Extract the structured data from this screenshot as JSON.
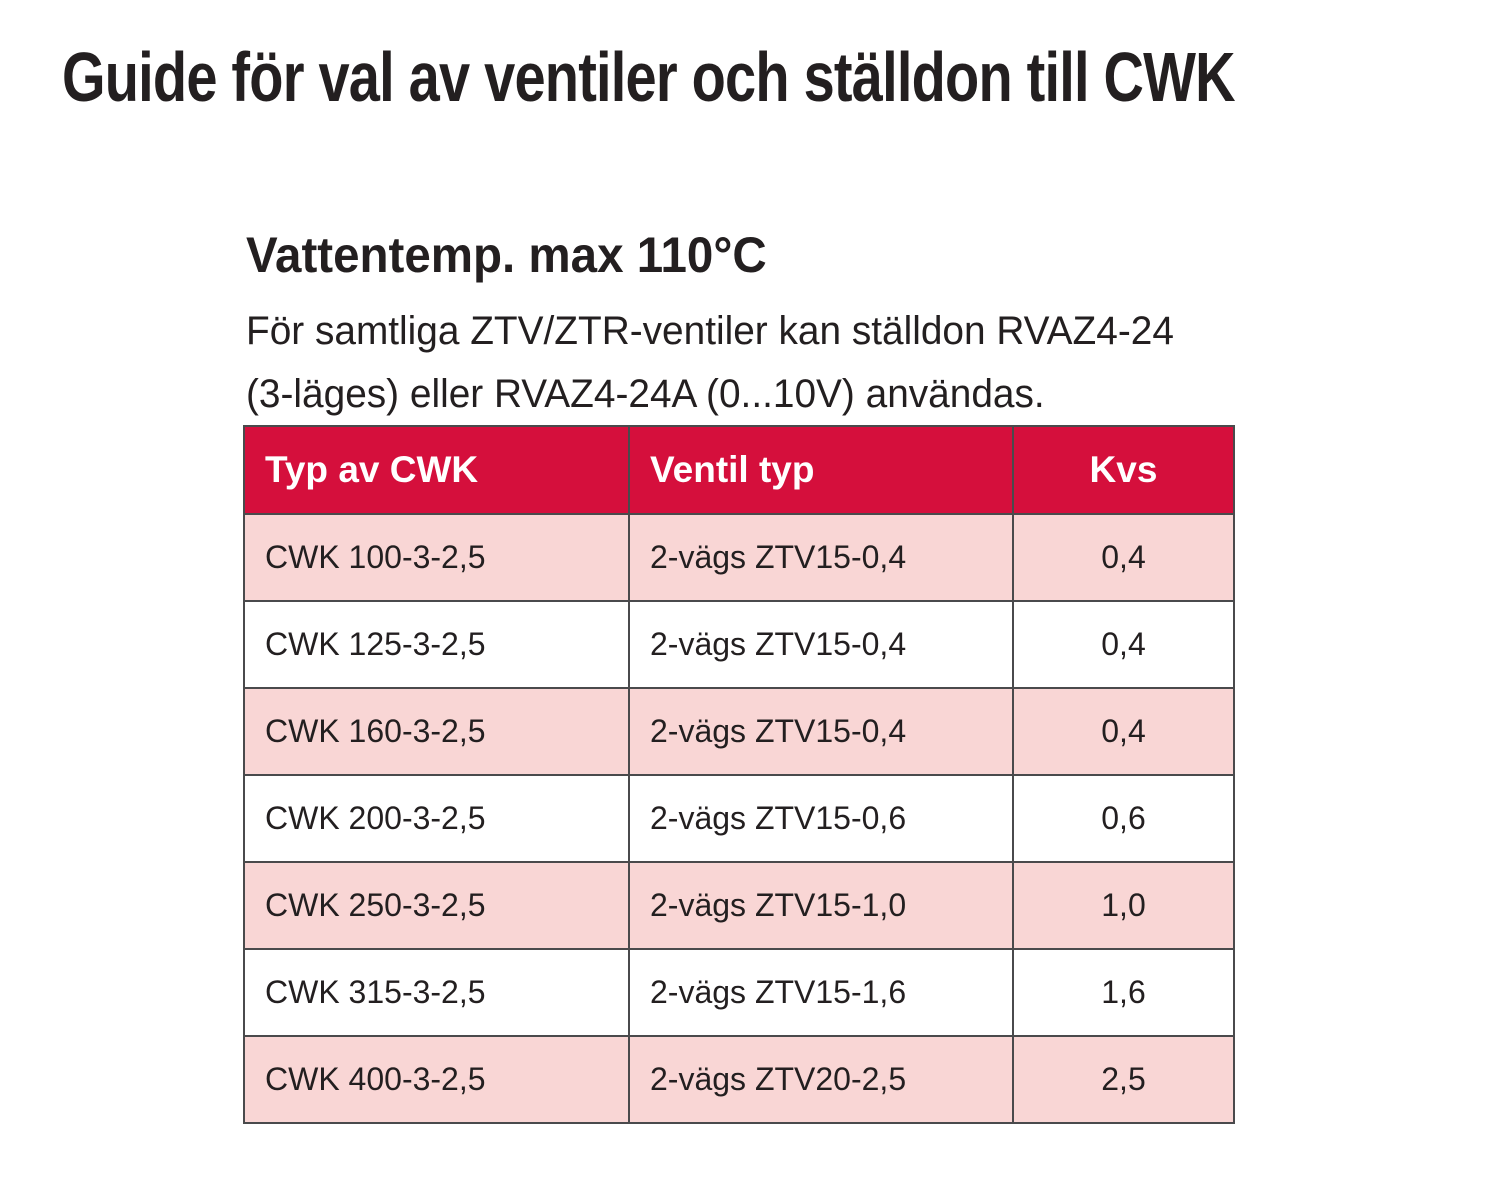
{
  "page": {
    "title": "Guide för val av ventiler och ställdon till CWK"
  },
  "section": {
    "heading": "Vattentemp. max 110°C",
    "intro_lines": [
      "För samtliga ZTV/ZTR-ventiler kan ställdon RVAZ4-24",
      "(3-läges) eller RVAZ4-24A (0...10V) användas."
    ]
  },
  "table": {
    "columns": [
      "Typ av CWK",
      "Ventil typ",
      "Kvs"
    ],
    "rows": [
      [
        "CWK 100-3-2,5",
        "2-vägs ZTV15-0,4",
        "0,4"
      ],
      [
        "CWK 125-3-2,5",
        "2-vägs ZTV15-0,4",
        "0,4"
      ],
      [
        "CWK 160-3-2,5",
        "2-vägs ZTV15-0,4",
        "0,4"
      ],
      [
        "CWK 200-3-2,5",
        "2-vägs ZTV15-0,6",
        "0,6"
      ],
      [
        "CWK 250-3-2,5",
        "2-vägs ZTV15-1,0",
        "1,0"
      ],
      [
        "CWK 315-3-2,5",
        "2-vägs ZTV15-1,6",
        "1,6"
      ],
      [
        "CWK 400-3-2,5",
        "2-vägs ZTV20-2,5",
        "2,5"
      ]
    ]
  },
  "colors": {
    "header_bg": "#d50f3c",
    "header_text": "#ffffff",
    "row_alt_bg": "#f9d6d5",
    "border": "#4a4a4c",
    "text": "#231f20",
    "page_bg": "#ffffff"
  }
}
